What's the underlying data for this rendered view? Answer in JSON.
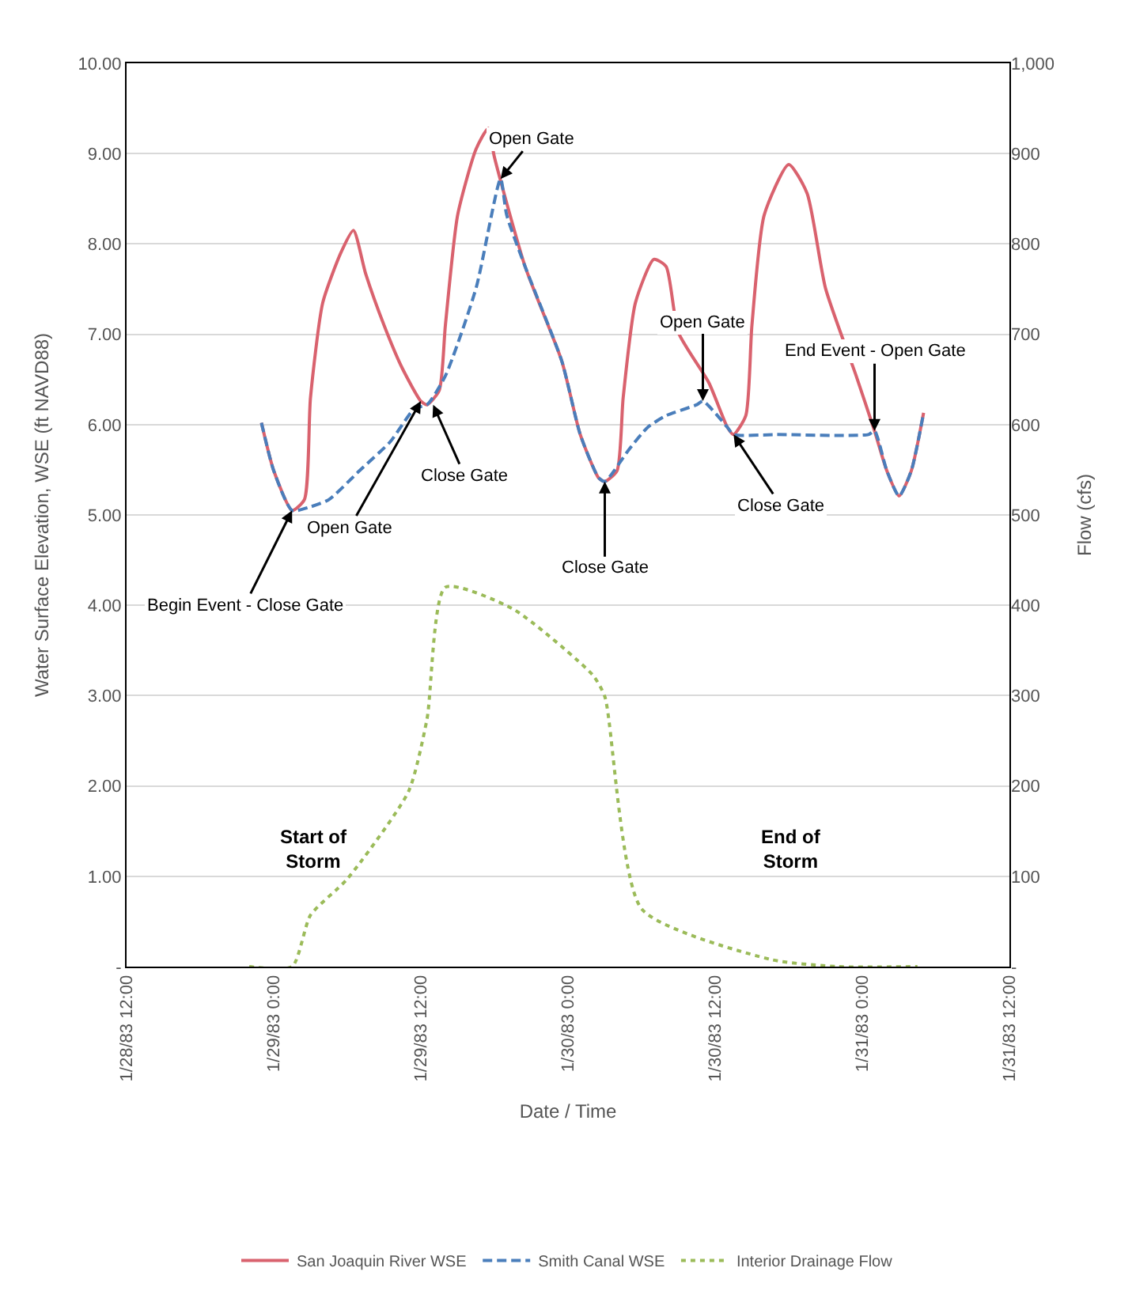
{
  "chart_data": {
    "type": "line",
    "xlabel": "Date / Time",
    "ylabel": "Water Surface Elevation, WSE (ft NAVD88)",
    "y2label": "Flow (cfs)",
    "xlim": [
      "1983-01-28T12:00",
      "1983-01-31T12:00"
    ],
    "xticks": [
      {
        "value": "1983-01-28T12:00",
        "label": "1/28/83 12:00"
      },
      {
        "value": "1983-01-29T00:00",
        "label": "1/29/83 0:00"
      },
      {
        "value": "1983-01-29T12:00",
        "label": "1/29/83 12:00"
      },
      {
        "value": "1983-01-30T00:00",
        "label": "1/30/83 0:00"
      },
      {
        "value": "1983-01-30T12:00",
        "label": "1/30/83 12:00"
      },
      {
        "value": "1983-01-31T00:00",
        "label": "1/31/83 0:00"
      },
      {
        "value": "1983-01-31T12:00",
        "label": "1/31/83 12:00"
      }
    ],
    "ylim": [
      0,
      10
    ],
    "yticks": [
      {
        "value": 0,
        "label": "-"
      },
      {
        "value": 1,
        "label": "1.00"
      },
      {
        "value": 2,
        "label": "2.00"
      },
      {
        "value": 3,
        "label": "3.00"
      },
      {
        "value": 4,
        "label": "4.00"
      },
      {
        "value": 5,
        "label": "5.00"
      },
      {
        "value": 6,
        "label": "6.00"
      },
      {
        "value": 7,
        "label": "7.00"
      },
      {
        "value": 8,
        "label": "8.00"
      },
      {
        "value": 9,
        "label": "9.00"
      },
      {
        "value": 10,
        "label": "10.00"
      }
    ],
    "y2lim": [
      0,
      1000
    ],
    "y2ticks": [
      {
        "value": 0,
        "label": "-"
      },
      100,
      200,
      300,
      400,
      500,
      600,
      700,
      800,
      900,
      {
        "value": 1000,
        "label": "1,000"
      }
    ],
    "grid": "y",
    "legend": "bottom",
    "marker": "none",
    "series": [
      {
        "name": "San Joaquin River WSE",
        "color": "#d9626e",
        "line_style": "solid",
        "x": [
          "1983-01-28T23:00",
          "1983-01-29T00:00",
          "1983-01-29T01:30",
          "1983-01-29T02:30",
          "1983-01-29T03:00",
          "1983-01-29T04:00",
          "1983-01-29T05:30",
          "1983-01-29T06:30",
          "1983-01-29T07:30",
          "1983-01-29T09:00",
          "1983-01-29T10:30",
          "1983-01-29T12:00",
          "1983-01-29T12:30",
          "1983-01-29T13:30",
          "1983-01-29T14:00",
          "1983-01-29T15:00",
          "1983-01-29T16:30",
          "1983-01-29T17:30",
          "1983-01-29T18:00",
          "1983-01-29T20:30",
          "1983-01-29T23:30",
          "1983-01-30T01:00",
          "1983-01-30T02:30",
          "1983-01-30T03:00",
          "1983-01-30T04:00",
          "1983-01-30T04:30",
          "1983-01-30T05:30",
          "1983-01-30T07:00",
          "1983-01-30T08:00",
          "1983-01-30T09:00",
          "1983-01-30T11:30",
          "1983-01-30T13:00",
          "1983-01-30T13:30",
          "1983-01-30T14:30",
          "1983-01-30T15:00",
          "1983-01-30T16:00",
          "1983-01-30T18:00",
          "1983-01-30T19:30",
          "1983-01-30T21:00",
          "1983-01-30T23:30",
          "1983-01-31T01:00",
          "1983-01-31T02:00",
          "1983-01-31T03:00",
          "1983-01-31T04:00",
          "1983-01-31T05:00"
        ],
        "values": [
          6.02,
          5.49,
          5.05,
          5.17,
          6.3,
          7.35,
          7.91,
          8.15,
          7.67,
          7.1,
          6.62,
          6.26,
          6.22,
          6.38,
          7.1,
          8.32,
          9.05,
          9.28,
          8.96,
          7.75,
          6.7,
          5.89,
          5.41,
          5.37,
          5.49,
          6.3,
          7.35,
          7.83,
          7.75,
          7.02,
          6.46,
          5.97,
          5.89,
          6.1,
          7.1,
          8.32,
          8.88,
          8.56,
          7.51,
          6.54,
          5.93,
          5.49,
          5.21,
          5.49,
          6.13
        ]
      },
      {
        "name": "Smith Canal WSE",
        "color": "#4a7ebb",
        "line_style": "dashed",
        "x": [
          "1983-01-28T23:00",
          "1983-01-29T00:00",
          "1983-01-29T01:30",
          "1983-01-29T03:00",
          "1983-01-29T04:30",
          "1983-01-29T07:00",
          "1983-01-29T09:30",
          "1983-01-29T11:30",
          "1983-01-29T12:30",
          "1983-01-29T14:00",
          "1983-01-29T16:30",
          "1983-01-29T18:30",
          "1983-01-29T19:00",
          "1983-01-29T20:30",
          "1983-01-29T23:30",
          "1983-01-30T01:00",
          "1983-01-30T02:30",
          "1983-01-30T03:00",
          "1983-01-30T05:00",
          "1983-01-30T06:30",
          "1983-01-30T08:00",
          "1983-01-30T10:30",
          "1983-01-30T11:00",
          "1983-01-30T13:00",
          "1983-01-30T13:30",
          "1983-01-30T17:00",
          "1983-01-31T00:30",
          "1983-01-31T01:00",
          "1983-01-31T02:00",
          "1983-01-31T03:00",
          "1983-01-31T04:00",
          "1983-01-31T05:00"
        ],
        "values": [
          6.02,
          5.49,
          5.05,
          5.09,
          5.17,
          5.49,
          5.81,
          6.18,
          6.22,
          6.54,
          7.51,
          8.72,
          8.32,
          7.75,
          6.7,
          5.89,
          5.41,
          5.37,
          5.73,
          5.97,
          6.1,
          6.22,
          6.26,
          5.97,
          5.89,
          5.89,
          5.89,
          5.93,
          5.49,
          5.21,
          5.49,
          6.13
        ]
      },
      {
        "name": "Interior Drainage Flow",
        "color": "#9bbb59",
        "line_style": "dotted",
        "axis": "y2",
        "x": [
          "1983-01-28T22:00",
          "1983-01-29T01:30",
          "1983-01-29T03:00",
          "1983-01-29T06:00",
          "1983-01-29T11:00",
          "1983-01-29T12:30",
          "1983-01-29T14:00",
          "1983-01-29T19:30",
          "1983-01-30T02:00",
          "1983-01-30T03:00",
          "1983-01-30T06:00",
          "1983-01-30T16:30",
          "1983-01-30T22:00",
          "1983-01-31T04:30"
        ],
        "values": [
          0,
          0,
          57,
          97,
          194,
          274,
          420,
          396,
          323,
          299,
          64,
          8,
          0,
          0
        ]
      }
    ],
    "annotations": [
      {
        "text": "Begin Event - Close Gate",
        "x": "1983-01-29T01:30",
        "y": 5.05
      },
      {
        "text": "Close Gate",
        "x": "1983-01-29T13:00",
        "y": 6.22
      },
      {
        "text": "Open Gate",
        "x": "1983-01-29T12:00",
        "y": 6.26
      },
      {
        "text": "Open Gate",
        "x": "1983-01-29T18:30",
        "y": 8.72
      },
      {
        "text": "Close Gate",
        "x": "1983-01-30T03:00",
        "y": 5.37
      },
      {
        "text": "Open Gate",
        "x": "1983-01-30T11:00",
        "y": 6.26
      },
      {
        "text": "Close Gate",
        "x": "1983-01-30T13:30",
        "y": 5.89
      },
      {
        "text": "End Event - Open Gate",
        "x": "1983-01-31T01:00",
        "y": 5.93
      },
      "Start of\nStorm",
      "End of\nStorm"
    ]
  }
}
